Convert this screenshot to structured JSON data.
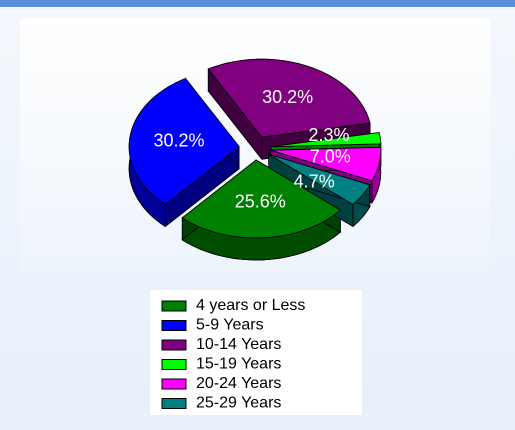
{
  "chart_data": {
    "type": "pie",
    "categories": [
      "4 years or Less",
      "5-9 Years",
      "10-14 Years",
      "15-19 Years",
      "20-24 Years",
      "25-29 Years"
    ],
    "values": [
      25.6,
      30.2,
      30.2,
      2.3,
      7.0,
      4.7
    ],
    "value_labels": [
      "25.6%",
      "30.2%",
      "30.2%",
      "2.3%",
      "7.0%",
      "4.7%"
    ],
    "colors": [
      "#008000",
      "#0000ff",
      "#800080",
      "#00ff00",
      "#ff00ff",
      "#008080"
    ],
    "legend": "bottom"
  }
}
